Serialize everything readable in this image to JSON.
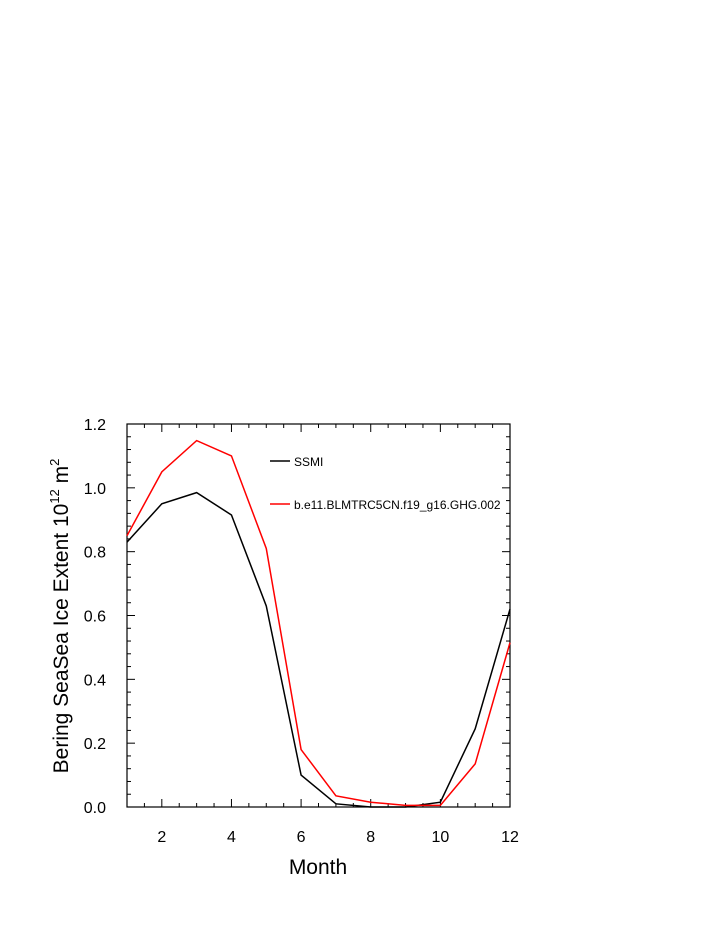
{
  "chart_data": {
    "type": "line",
    "xlabel": "Month",
    "ylabel": {
      "main": "Bering SeaSea Ice Extent 10",
      "exponent": "12",
      "unit": " m",
      "unit_exponent": "2"
    },
    "xlim": [
      1,
      12
    ],
    "ylim": [
      0,
      1.2
    ],
    "xticks": [
      2,
      4,
      6,
      8,
      10,
      12
    ],
    "yticks": [
      "0.0",
      "0.2",
      "0.4",
      "0.6",
      "0.8",
      "1.0",
      "1.2"
    ],
    "legend_position": "top-right",
    "x": [
      1,
      2,
      3,
      4,
      5,
      6,
      7,
      8,
      9,
      10,
      11,
      12
    ],
    "series": [
      {
        "name": "SSMI",
        "color": "#000000",
        "values": [
          0.83,
          0.95,
          0.985,
          0.915,
          0.63,
          0.1,
          0.01,
          0.0,
          0.0,
          0.015,
          0.245,
          0.62
        ]
      },
      {
        "name": "b.e11.BLMTRC5CN.f19_g16.GHG.002",
        "color": "#ff0000",
        "values": [
          0.85,
          1.05,
          1.148,
          1.1,
          0.81,
          0.18,
          0.035,
          0.015,
          0.005,
          0.005,
          0.135,
          0.515
        ]
      }
    ]
  }
}
